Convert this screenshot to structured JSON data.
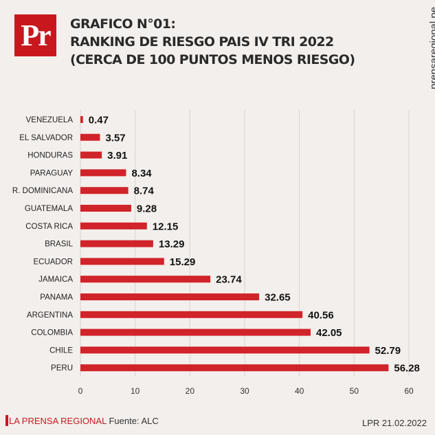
{
  "logo": {
    "text": "Pr"
  },
  "header": {
    "title_lines": [
      "GRAFICO N°01:",
      "RANKING DE RIESGO PAIS IV TRI 2022",
      "(CERCA DE 100 PUNTOS MENOS RIESGO)"
    ],
    "site": "prensaregional.pe"
  },
  "footer": {
    "brand": "LA PRENSA REGIONAL",
    "source": "Fuente: ALC",
    "date": "LPR 21.02.2022"
  },
  "colors": {
    "bar": "#d1232a",
    "accent": "#c8181e",
    "background": "#f3efec"
  },
  "chart_data": {
    "type": "bar",
    "orientation": "horizontal",
    "categories": [
      "VENEZUELA",
      "EL SALVADOR",
      "HONDURAS",
      "PARAGUAY",
      "R. DOMINICANA",
      "GUATEMALA",
      "COSTA RICA",
      "BRASIL",
      "ECUADOR",
      "JAMAICA",
      "PANAMA",
      "ARGENTINA",
      "COLOMBIA",
      "CHILE",
      "PERU"
    ],
    "values": [
      0.47,
      3.57,
      3.91,
      8.34,
      8.74,
      9.28,
      12.15,
      13.29,
      15.29,
      23.74,
      32.65,
      40.56,
      42.05,
      52.79,
      56.28
    ],
    "value_labels": [
      "0.47",
      "3.57",
      "3.91",
      "8.34",
      "8.74",
      "9.28",
      "12.15",
      "13.29",
      "15.29",
      "23.74",
      "32.65",
      "40.56",
      "42.05",
      "52.79",
      "56.28"
    ],
    "xticks": [
      "0",
      "10",
      "20",
      "30",
      "40",
      "50",
      "60"
    ],
    "xlim": [
      0,
      60
    ],
    "grid": "vertical"
  }
}
